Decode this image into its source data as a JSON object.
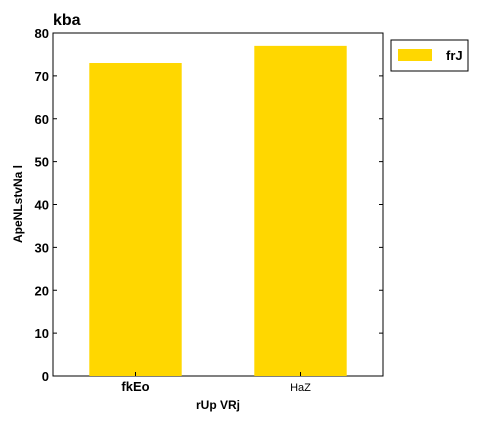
{
  "chart_data": {
    "type": "bar",
    "title": "kba",
    "xlabel": "rUp VRj",
    "ylabel": "ApeNLstvNa l",
    "categories": [
      "fkEo",
      "HaZ"
    ],
    "series": [
      {
        "name": "frJ",
        "values": [
          73,
          77
        ],
        "color": "#FFD700"
      }
    ],
    "ylim": [
      0,
      80
    ],
    "yticks": [
      0,
      10,
      20,
      30,
      40,
      50,
      60,
      70,
      80
    ],
    "grid": false,
    "legend": {
      "placement": "outside-top-right"
    }
  }
}
